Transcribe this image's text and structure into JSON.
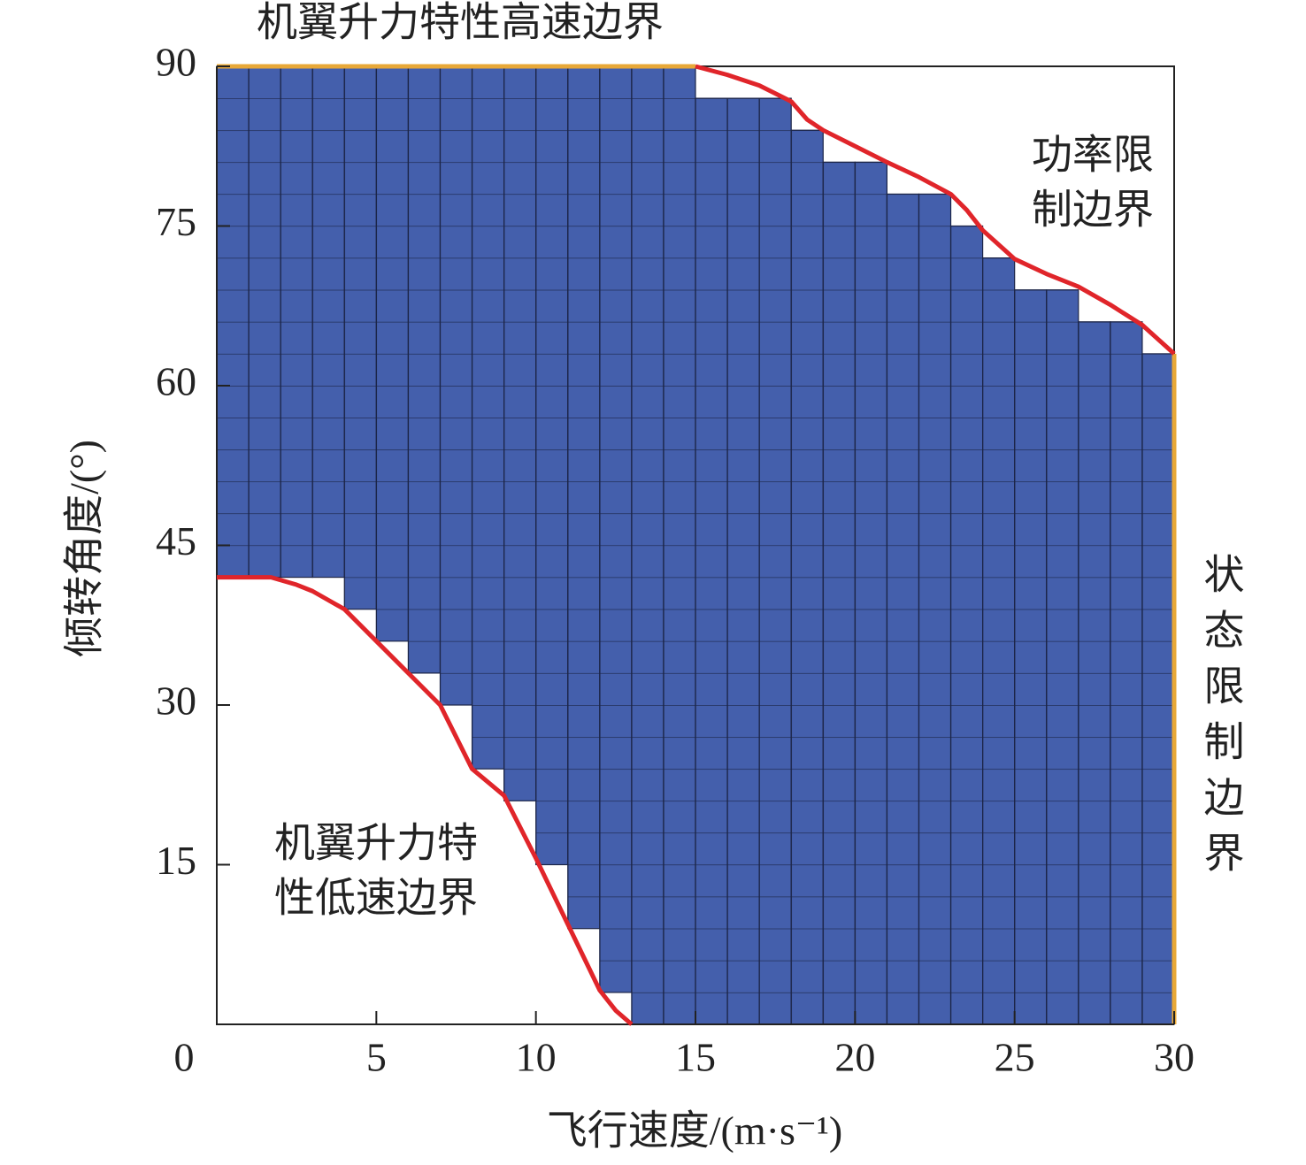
{
  "chart_data": {
    "type": "range-grid",
    "x_label": "飞行速度/(m·s⁻¹)",
    "y_label": "倾转角度/(°)",
    "bins": [
      0,
      1,
      2,
      3,
      4,
      5,
      6,
      7,
      8,
      9,
      10,
      11,
      12,
      13,
      14,
      15,
      16,
      17,
      18,
      19,
      20,
      21,
      22,
      23,
      24,
      25,
      26,
      27,
      28,
      29,
      30
    ],
    "lower": [
      42,
      42,
      42,
      42,
      39,
      36,
      33,
      30,
      24,
      21,
      15,
      9,
      3,
      0,
      0,
      0,
      0,
      0,
      0,
      0,
      0,
      0,
      0,
      0,
      0,
      0,
      0,
      0,
      0,
      0
    ],
    "upper": [
      90,
      90,
      90,
      90,
      90,
      90,
      90,
      90,
      90,
      90,
      90,
      90,
      90,
      90,
      90,
      87,
      87,
      87,
      84,
      81,
      81,
      78,
      78,
      75,
      72,
      69,
      69,
      66,
      66,
      63
    ],
    "color": "#445fac",
    "grid": true,
    "curves": [
      {
        "color": "#e0252a",
        "x": [
          0,
          1,
          1.7,
          2.5,
          3,
          4,
          5,
          6,
          7,
          7.5,
          8,
          9,
          10,
          11,
          12,
          12.5,
          13
        ],
        "y": [
          42,
          42,
          42,
          41.3,
          40.7,
          39,
          36,
          33,
          30,
          27,
          24,
          21.5,
          15.6,
          9.4,
          3.2,
          1.3,
          0
        ]
      },
      {
        "color": "#e0252a",
        "x": [
          15,
          16,
          17,
          18,
          18.5,
          19,
          20,
          21,
          22,
          23,
          23.5,
          24,
          25,
          26,
          27,
          28,
          29,
          30
        ],
        "y": [
          90,
          89.2,
          88.2,
          86.7,
          85,
          84,
          82.5,
          81,
          79.6,
          78,
          76.5,
          74.6,
          71.9,
          70.5,
          69.3,
          67.6,
          65.7,
          63
        ]
      }
    ],
    "limits": [
      {
        "color": "#e8a838",
        "x": [
          0,
          15
        ],
        "y": [
          90,
          90
        ]
      },
      {
        "color": "#e8a838",
        "x": [
          30,
          30
        ],
        "y": [
          0,
          63
        ]
      }
    ],
    "annotations": [
      {
        "lines": [
          "机翼升力特性高速边界"
        ]
      },
      {
        "lines": [
          "功率限",
          "制边界"
        ]
      },
      {
        "lines": [
          "状态限制边界"
        ]
      },
      {
        "lines": [
          "机翼升力特",
          "性低速边界"
        ]
      }
    ],
    "xlim": [
      0,
      30
    ],
    "xticks": [
      0,
      5,
      10,
      15,
      20,
      25,
      30
    ],
    "ylim": [
      0,
      90
    ],
    "yticks": [
      15,
      30,
      45,
      60,
      75,
      90
    ]
  }
}
